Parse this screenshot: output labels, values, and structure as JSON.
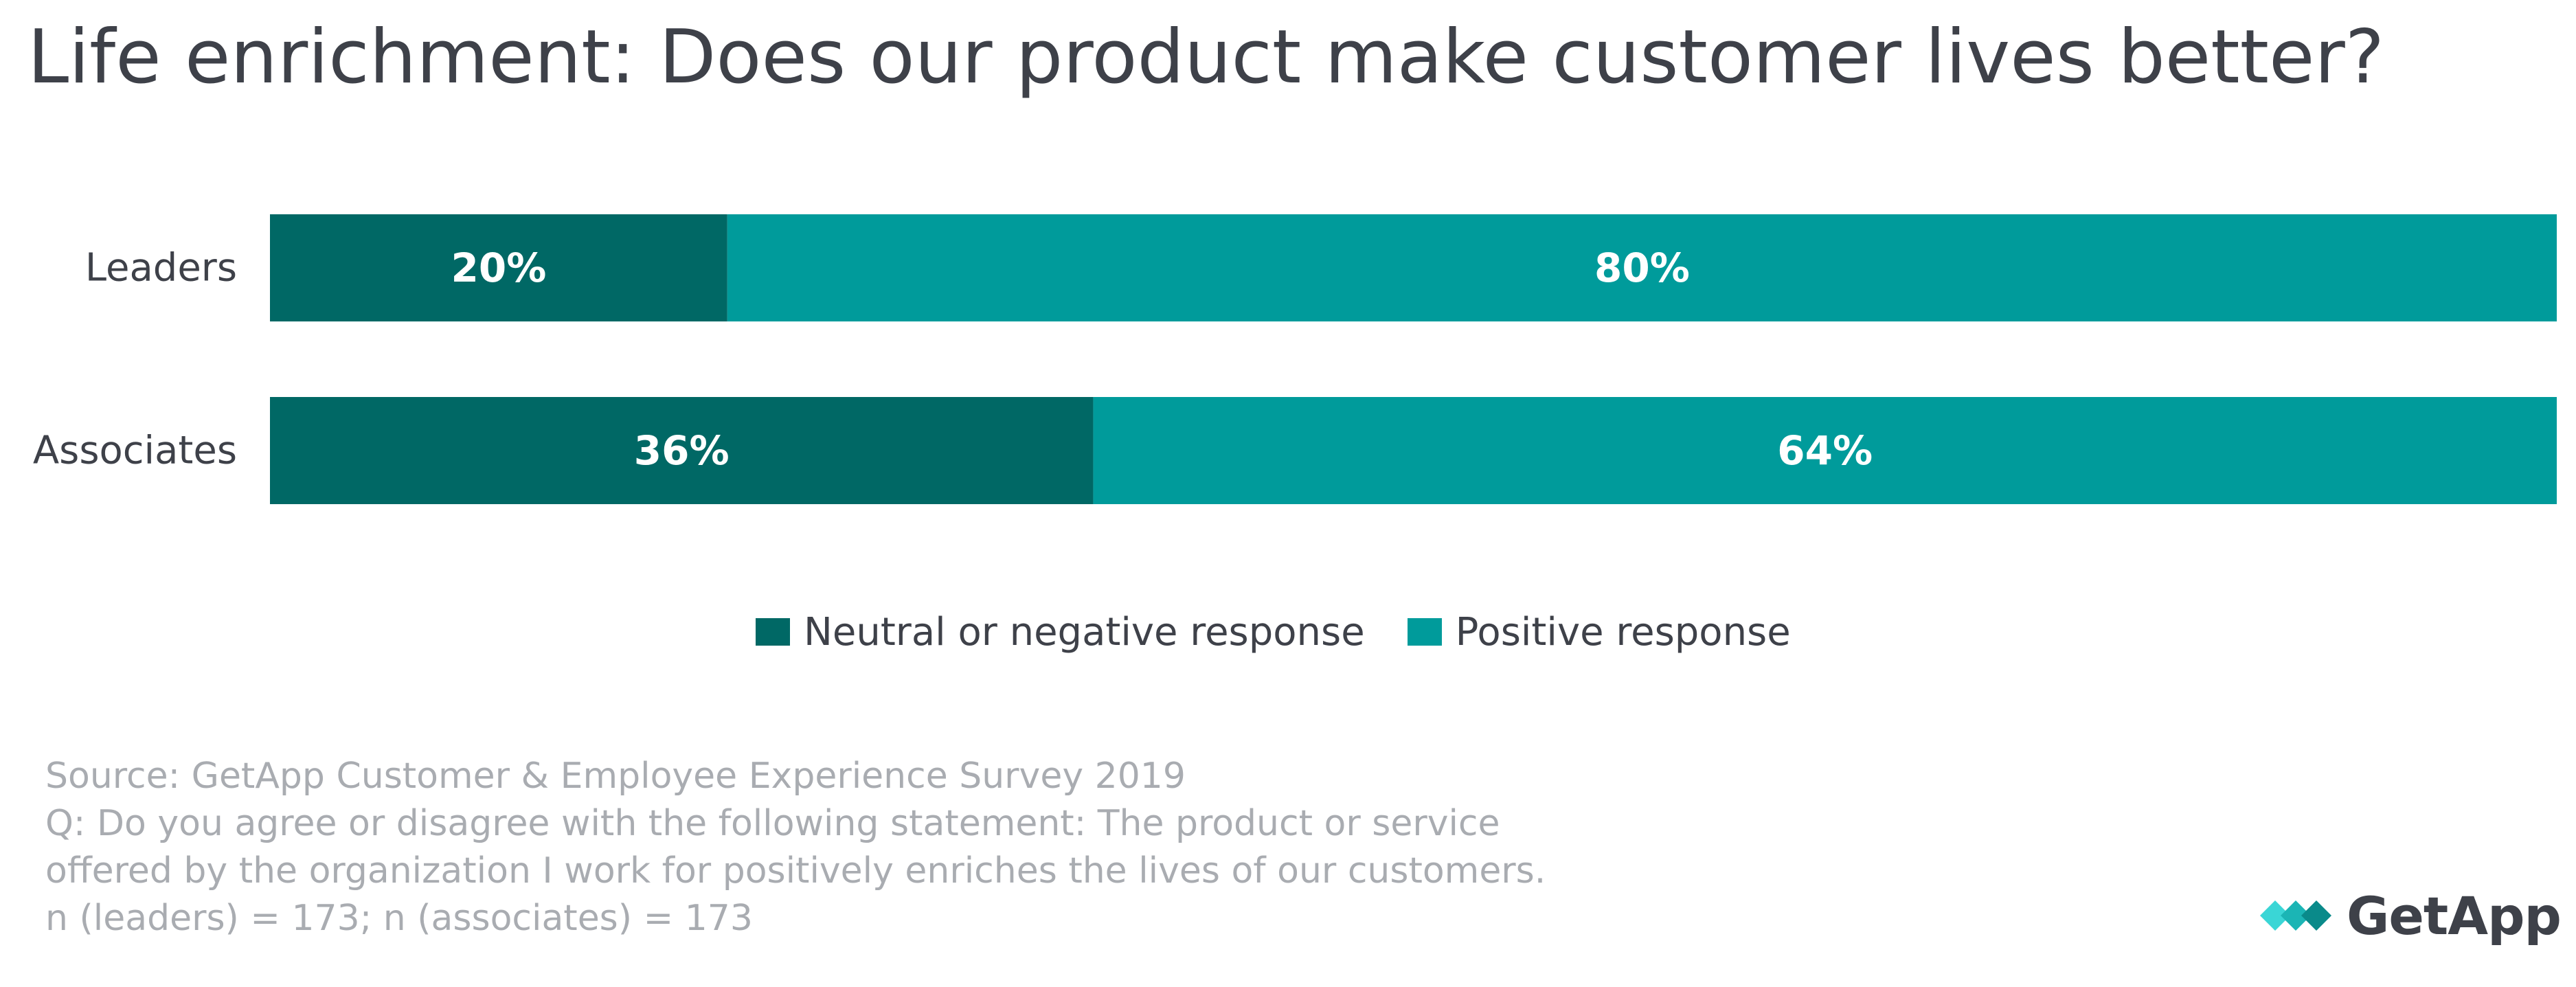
{
  "header": {
    "title": "Life enrichment: Does our product make customer lives better?"
  },
  "chart_data": {
    "type": "bar",
    "orientation": "horizontal",
    "stacked": true,
    "title": "Life enrichment: Does our product make customer lives better?",
    "categories": [
      "Leaders",
      "Associates"
    ],
    "series": [
      {
        "name": "Neutral or negative response",
        "color": "#006865",
        "values": [
          20,
          36
        ],
        "labels": [
          "20%",
          "36%"
        ]
      },
      {
        "name": "Positive response",
        "color": "#009b9b",
        "values": [
          80,
          64
        ],
        "labels": [
          "80%",
          "64%"
        ]
      }
    ],
    "xlim": [
      0,
      100
    ],
    "unit": "%",
    "grid": false,
    "legend_position": "bottom-center"
  },
  "notes": {
    "source": "Source: GetApp Customer & Employee Experience Survey 2019",
    "question_line1": "Q: Do you agree or disagree with the following statement: The product or service",
    "question_line2": "offered by the organization I work for positively enriches the lives of our customers.",
    "sample": "n (leaders) = 173; n (associates) = 173"
  },
  "logo": {
    "text": "GetApp",
    "icon": "getapp-chevrons-icon",
    "colors": [
      "#3ad6d6",
      "#1bb5b5",
      "#0a8a8a"
    ]
  }
}
